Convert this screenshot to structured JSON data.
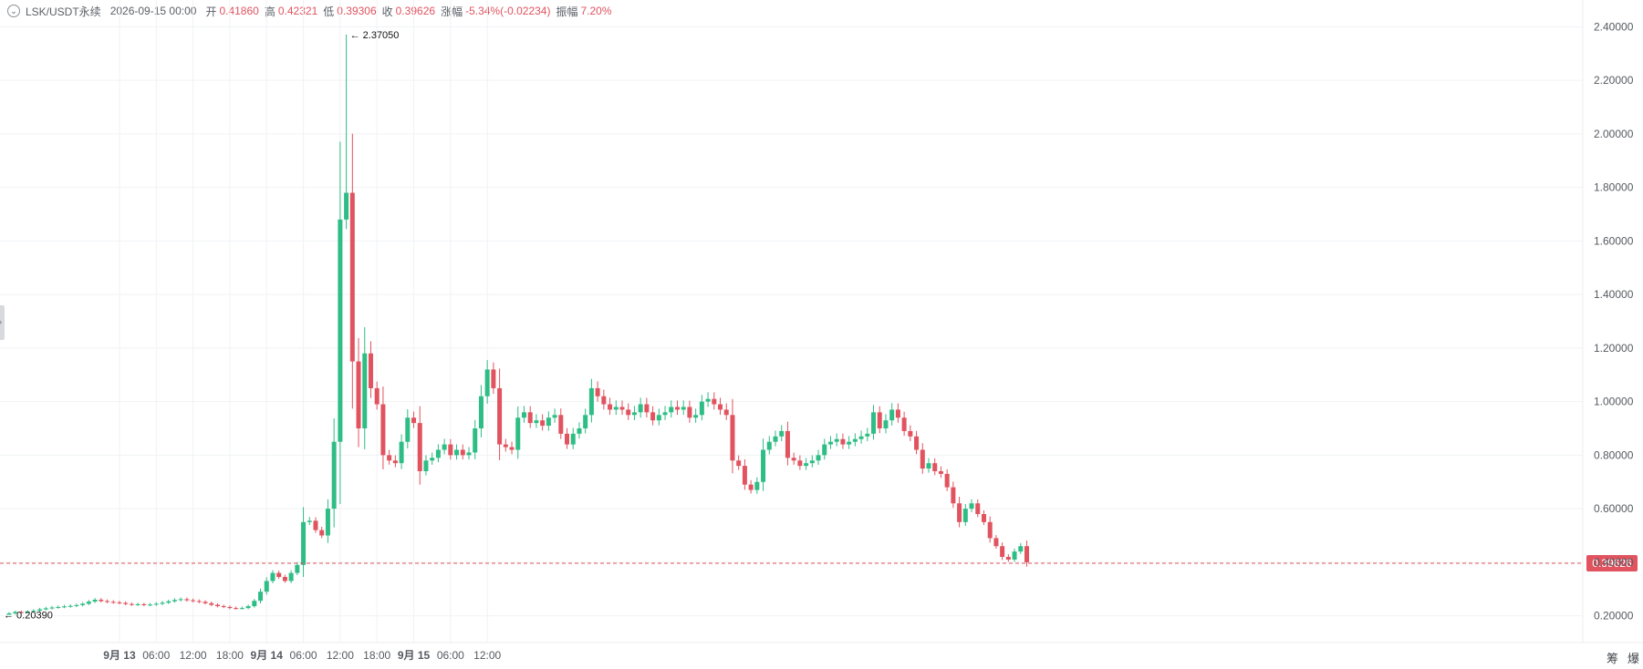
{
  "header": {
    "collapse_glyph": "⌄",
    "symbol": "LSK/USDT永续",
    "datetime": "2026-09-15 00:00",
    "open_label": "开",
    "open": "0.41860",
    "high_label": "高",
    "high": "0.42321",
    "low_label": "低",
    "low": "0.39306",
    "close_label": "收",
    "close": "0.39626",
    "change_label": "涨幅",
    "change": "-5.34%(-0.02234)",
    "amplitude_label": "振幅",
    "amplitude": "7.20%"
  },
  "footer_tools": {
    "chip": "筹",
    "liq": "爆"
  },
  "colors": {
    "up": "#2ebd85",
    "down": "#e0535f",
    "grid": "#f1f2f4",
    "axis_text": "#555a60"
  },
  "chart_data": {
    "type": "candlestick",
    "interval_hours": 1,
    "x_ticks": [
      "9月 13",
      "06:00",
      "12:00",
      "18:00",
      "9月 14",
      "06:00",
      "12:00",
      "18:00",
      "9月 15",
      "06:00",
      "12:00"
    ],
    "x_tick_bold": [
      true,
      false,
      false,
      false,
      true,
      false,
      false,
      false,
      true,
      false,
      false
    ],
    "y_ticks": [
      "2.40000",
      "2.20000",
      "2.00000",
      "1.80000",
      "1.60000",
      "1.40000",
      "1.20000",
      "1.00000",
      "0.80000",
      "0.60000",
      "0.40000",
      "0.20000"
    ],
    "ylim": [
      0.1,
      2.5
    ],
    "last_price": 0.39626,
    "last_price_label": "0.39626",
    "max_marker": {
      "label": "2.37050",
      "value": 2.3705,
      "index": 55
    },
    "min_marker": {
      "label": "0.20390",
      "value": 0.2039,
      "index": 0
    },
    "closes": [
      0.209,
      0.214,
      0.212,
      0.216,
      0.219,
      0.224,
      0.228,
      0.231,
      0.233,
      0.235,
      0.237,
      0.24,
      0.245,
      0.253,
      0.26,
      0.255,
      0.252,
      0.25,
      0.248,
      0.244,
      0.242,
      0.243,
      0.241,
      0.242,
      0.245,
      0.249,
      0.254,
      0.259,
      0.262,
      0.258,
      0.255,
      0.252,
      0.247,
      0.241,
      0.236,
      0.233,
      0.229,
      0.228,
      0.229,
      0.236,
      0.256,
      0.29,
      0.33,
      0.36,
      0.345,
      0.33,
      0.36,
      0.39,
      0.55,
      0.555,
      0.52,
      0.5,
      0.6,
      0.85,
      1.68,
      1.78,
      1.15,
      0.9,
      1.18,
      1.05,
      0.99,
      0.8,
      0.78,
      0.77,
      0.85,
      0.94,
      0.92,
      0.74,
      0.78,
      0.79,
      0.82,
      0.84,
      0.8,
      0.82,
      0.8,
      0.81,
      0.9,
      1.02,
      1.12,
      1.05,
      0.84,
      0.83,
      0.82,
      0.94,
      0.96,
      0.92,
      0.93,
      0.91,
      0.94,
      0.95,
      0.88,
      0.84,
      0.88,
      0.9,
      0.95,
      1.05,
      1.02,
      0.99,
      0.97,
      0.98,
      0.97,
      0.95,
      0.96,
      0.99,
      0.96,
      0.93,
      0.95,
      0.96,
      0.98,
      0.97,
      0.98,
      0.94,
      0.95,
      1.0,
      1.01,
      0.99,
      0.97,
      0.95,
      0.78,
      0.76,
      0.69,
      0.67,
      0.7,
      0.82,
      0.85,
      0.87,
      0.89,
      0.79,
      0.78,
      0.76,
      0.77,
      0.78,
      0.8,
      0.84,
      0.85,
      0.86,
      0.84,
      0.85,
      0.86,
      0.87,
      0.88,
      0.96,
      0.9,
      0.93,
      0.97,
      0.94,
      0.89,
      0.87,
      0.82,
      0.75,
      0.77,
      0.74,
      0.73,
      0.68,
      0.62,
      0.55,
      0.6,
      0.62,
      0.58,
      0.55,
      0.49,
      0.46,
      0.42,
      0.41,
      0.44,
      0.46,
      0.4
    ]
  }
}
